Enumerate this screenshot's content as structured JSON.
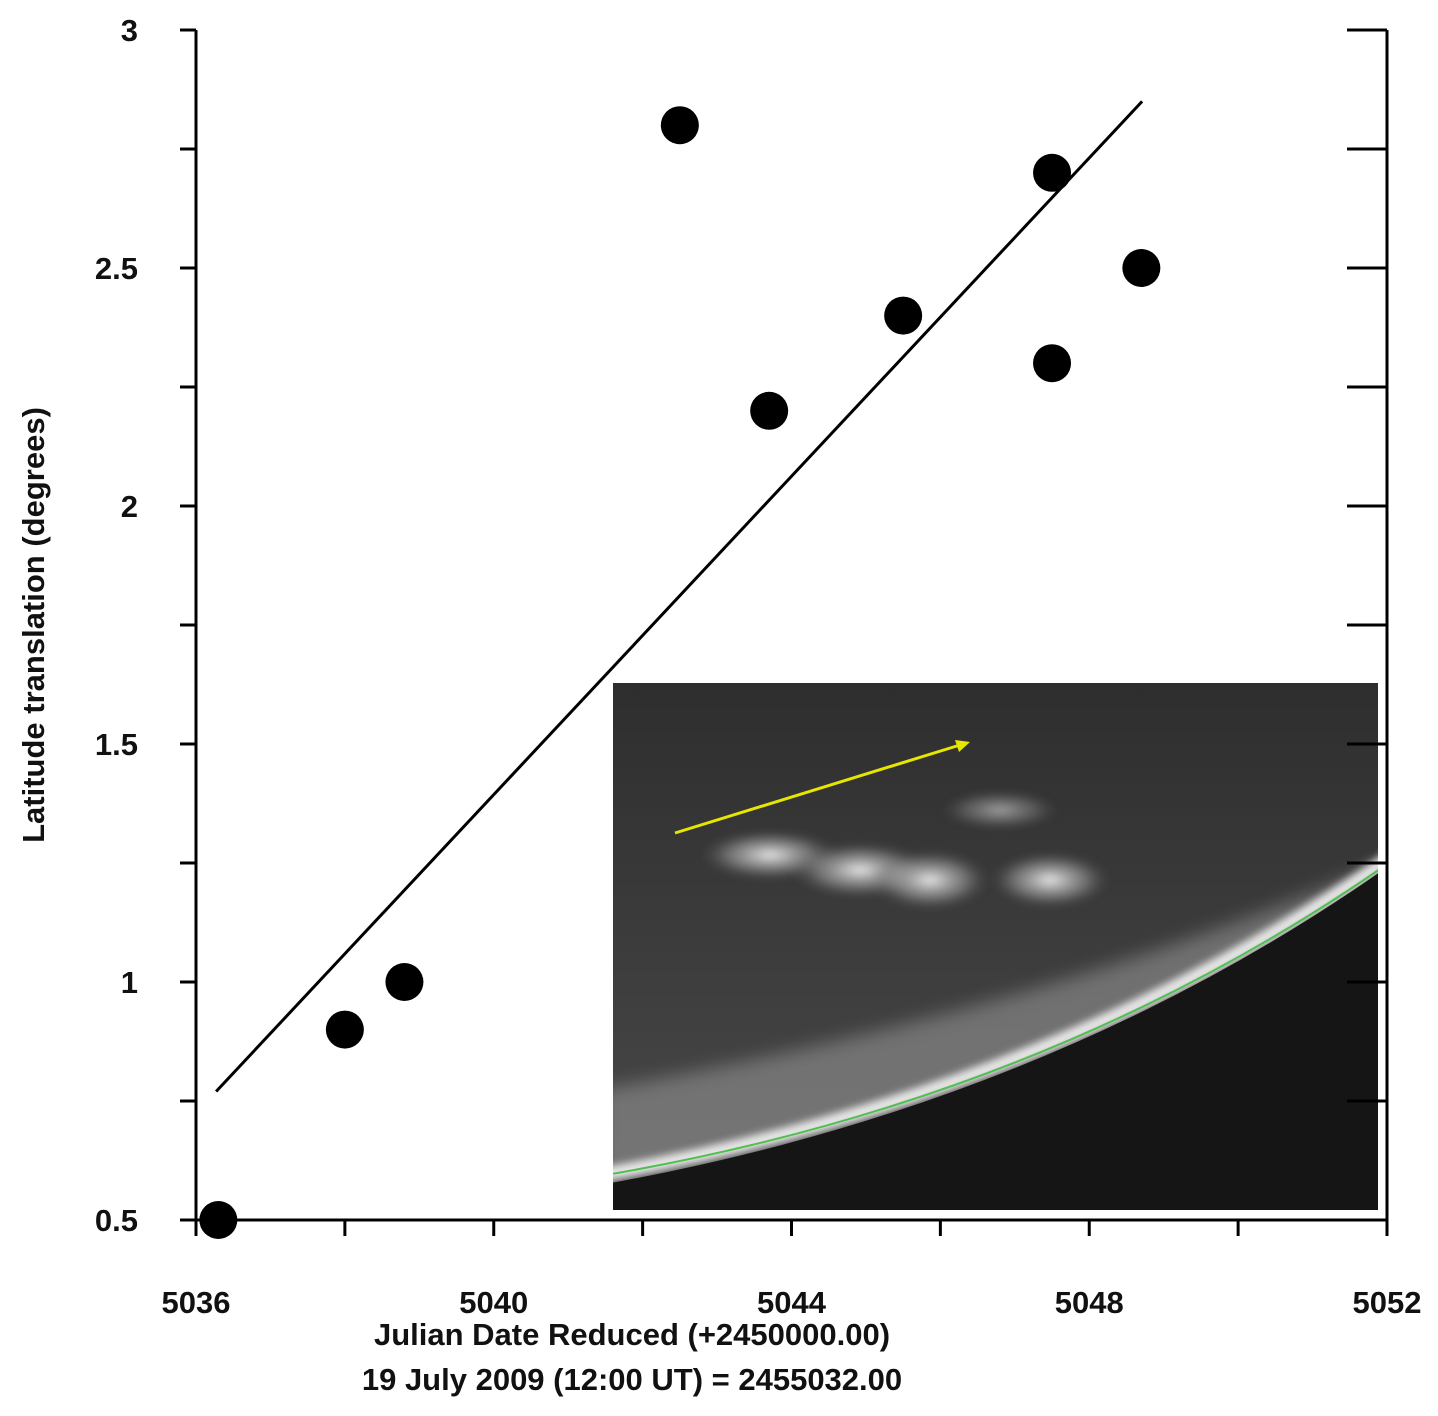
{
  "chart_data": {
    "type": "scatter",
    "x_label": [
      "Julian Date Reduced (+2450000.00)",
      "19 July 2009 (12:00 UT) = 2455032.00"
    ],
    "y_label": "Latitude translation (degrees)",
    "xlim": [
      5036,
      5052
    ],
    "ylim": [
      0.5,
      3
    ],
    "xticks": [
      5036,
      5040,
      5044,
      5048,
      5052
    ],
    "xminor": [
      5038,
      5042,
      5046,
      5050
    ],
    "yticks": [
      0.5,
      1,
      1.5,
      2,
      2.5,
      3
    ],
    "yminor": [
      0.75,
      1.25,
      1.75,
      2.25,
      2.75
    ],
    "series": [
      {
        "mode": "markers",
        "color": "#000000",
        "x": [
          5036.3,
          5038.0,
          5038.8,
          5042.5,
          5043.7,
          5045.5,
          5047.5,
          5047.5,
          5048.7
        ],
        "values": [
          0.5,
          0.9,
          1.0,
          2.8,
          2.2,
          2.4,
          2.7,
          2.3,
          2.5
        ]
      },
      {
        "mode": "line",
        "color": "#000000",
        "x": [
          5036.27,
          5048.71
        ],
        "values": [
          0.77,
          2.85
        ]
      }
    ]
  }
}
